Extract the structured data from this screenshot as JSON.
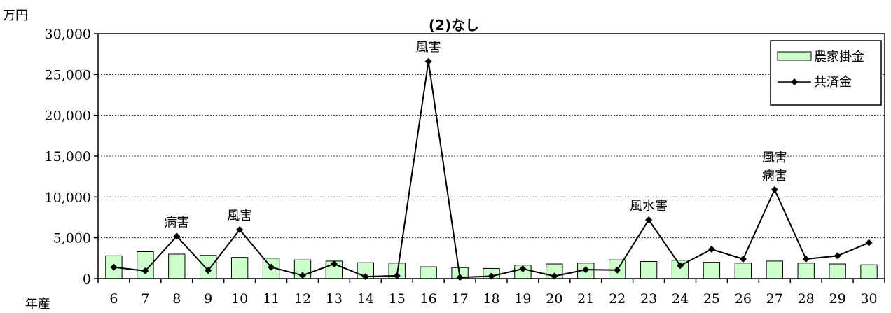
{
  "chart_data": {
    "type": "bar",
    "title": "(2)なし",
    "ylabel": "万円",
    "xlabel": "年産",
    "categories": [
      "6",
      "7",
      "8",
      "9",
      "10",
      "11",
      "12",
      "13",
      "14",
      "15",
      "16",
      "17",
      "18",
      "19",
      "20",
      "21",
      "22",
      "23",
      "24",
      "25",
      "26",
      "27",
      "28",
      "29",
      "30"
    ],
    "ylim": [
      0,
      30000
    ],
    "yticks": [
      0,
      5000,
      10000,
      15000,
      20000,
      25000,
      30000
    ],
    "ytick_labels": [
      "0",
      "5,000",
      "10,000",
      "15,000",
      "20,000",
      "25,000",
      "30,000"
    ],
    "grid": true,
    "legend_position": "top-right",
    "series": [
      {
        "name": "農家掛金",
        "type": "bar",
        "color": "#ccffcc",
        "values": [
          2800,
          3300,
          3000,
          2850,
          2600,
          2500,
          2300,
          2150,
          1950,
          1900,
          1450,
          1350,
          1250,
          1650,
          1800,
          1900,
          2300,
          2100,
          2250,
          2000,
          1900,
          2150,
          1900,
          1800,
          1700
        ]
      },
      {
        "name": "共済金",
        "type": "line",
        "color": "#000000",
        "values": [
          1400,
          950,
          5200,
          1000,
          6000,
          1400,
          400,
          1800,
          250,
          350,
          26600,
          150,
          300,
          1200,
          300,
          1100,
          1050,
          7200,
          1600,
          3600,
          2400,
          10900,
          2400,
          2800,
          4400
        ]
      }
    ],
    "annotations": [
      {
        "category": "8",
        "lines": [
          "病害"
        ]
      },
      {
        "category": "10",
        "lines": [
          "風害"
        ]
      },
      {
        "category": "16",
        "lines": [
          "風害"
        ]
      },
      {
        "category": "23",
        "lines": [
          "風水害"
        ]
      },
      {
        "category": "27",
        "lines": [
          "風害",
          "病害"
        ]
      }
    ]
  }
}
